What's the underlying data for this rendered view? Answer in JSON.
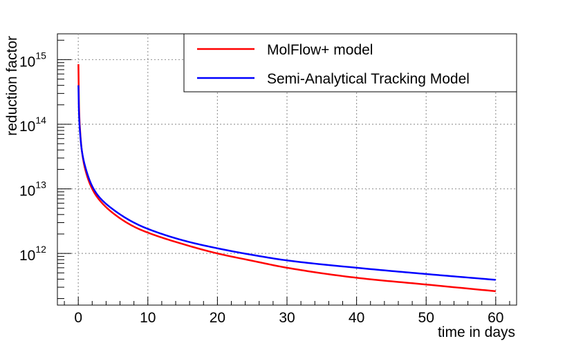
{
  "chart_data": {
    "type": "line",
    "xlabel": "time in days",
    "ylabel": "reduction factor",
    "xlim": [
      -3,
      63
    ],
    "ylim_log10": [
      11.2,
      15.4
    ],
    "yscale": "log",
    "x_ticks": [
      "0",
      "10",
      "20",
      "30",
      "40",
      "50",
      "60"
    ],
    "y_ticks": [
      {
        "base": "10",
        "exp": "12"
      },
      {
        "base": "10",
        "exp": "13"
      },
      {
        "base": "10",
        "exp": "14"
      },
      {
        "base": "10",
        "exp": "15"
      }
    ],
    "grid": true,
    "legend_position": "top-right",
    "series": [
      {
        "name": "MolFlow+ model",
        "color": "#ff0000",
        "x": [
          0.02,
          0.1,
          0.3,
          0.5,
          1,
          2,
          3,
          5,
          8,
          10,
          15,
          20,
          25,
          30,
          40,
          50,
          60
        ],
        "y": [
          850000000000000.0,
          200000000000000.0,
          70000000000000.0,
          40000000000000.0,
          20000000000000.0,
          10000000000000.0,
          6800000000000.0,
          4200000000000.0,
          2600000000000.0,
          2100000000000.0,
          1400000000000.0,
          1000000000000.0,
          770000000000.0,
          600000000000.0,
          420000000000.0,
          330000000000.0,
          260000000000.0
        ]
      },
      {
        "name": "Semi-Analytical Tracking Model",
        "color": "#0000ff",
        "x": [
          0.02,
          0.1,
          0.3,
          0.5,
          1,
          2,
          3,
          5,
          8,
          10,
          15,
          20,
          25,
          30,
          40,
          50,
          60
        ],
        "y": [
          400000000000000.0,
          150000000000000.0,
          65000000000000.0,
          40000000000000.0,
          22000000000000.0,
          11000000000000.0,
          7500000000000.0,
          4800000000000.0,
          3000000000000.0,
          2400000000000.0,
          1600000000000.0,
          1200000000000.0,
          950000000000.0,
          780000000000.0,
          600000000000.0,
          480000000000.0,
          390000000000.0
        ]
      }
    ]
  }
}
